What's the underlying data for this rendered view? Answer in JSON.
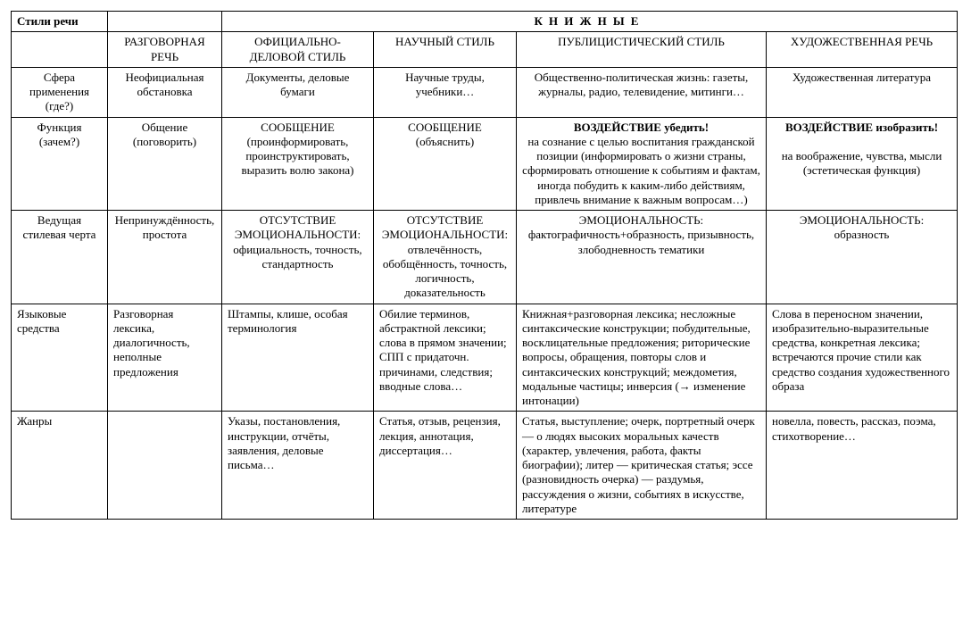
{
  "table": {
    "header": {
      "corner": "Стили речи",
      "group_title": "КНИЖНЫЕ",
      "cols": {
        "colloquial": "РАЗГОВОРНАЯ РЕЧЬ",
        "official": "ОФИЦИАЛЬНО-ДЕЛОВОЙ СТИЛЬ",
        "scientific": "НАУЧНЫЙ СТИЛЬ",
        "publicist": "ПУБЛИЦИСТИЧЕСКИЙ СТИЛЬ",
        "artistic": "ХУДОЖЕСТВЕННАЯ РЕЧЬ"
      }
    },
    "rows": {
      "sphere": {
        "label": "Сфера применения (где?)",
        "colloquial": "Неофициальная обстановка",
        "official": "Документы, деловые бумаги",
        "scientific": "Научные труды, учебники…",
        "publicist": "Общественно-политическая жизнь: газеты, журналы, радио, телевидение, митинги…",
        "artistic": "Художественная литература"
      },
      "func": {
        "label": "Функция (зачем?)",
        "colloquial": "Общение (поговорить)",
        "official": "СООБЩЕНИЕ (проинформировать, проинструктировать, выразить волю закона)",
        "scientific": "СООБЩЕНИЕ (объяснить)",
        "publicist_bold": "ВОЗДЕЙСТВИЕ убедить!",
        "publicist_rest": "на сознание с целью воспитания гражданской позиции (информировать о жизни страны, сформировать отношение к событиям и фактам, иногда побудить к каким-либо действиям, привлечь внимание к важным вопросам…)",
        "artistic_bold": "ВОЗДЕЙСТВИЕ изобразить!",
        "artistic_rest": "на воображение, чувства, мысли (эстетическая функция)"
      },
      "trait": {
        "label": "Ведущая стилевая черта",
        "colloquial": "Непринуждённость, простота",
        "official": "ОТСУТСТВИЕ ЭМОЦИОНАЛЬНОСТИ: официальность, точность, стандартность",
        "scientific": "ОТСУТСТВИЕ ЭМОЦИОНАЛЬНОСТИ: отвлечённость, обобщённость, точность, логичность, доказательность",
        "publicist": "ЭМОЦИОНАЛЬНОСТЬ: фактографичность+образность, призывность, злободневность тематики",
        "artistic": "ЭМОЦИОНАЛЬНОСТЬ: образность"
      },
      "means": {
        "label": "Языковые средства",
        "colloquial": "Разговорная лексика, диалогичность, неполные предложения",
        "official": "Штампы, клише, особая терминология",
        "scientific": "Обилие терминов, абстрактной лексики; слова в прямом значении; СПП с придаточн. причинами, следствия; вводные слова…",
        "publicist": "Книжная+разговорная лексика; несложные синтаксические конструкции; побудительные, восклицательные предложения; риторические вопросы, обращения, повторы слов и синтаксических конструкций; междометия, модальные частицы; инверсия (→ изменение интонации)",
        "artistic": "Слова в переносном значении, изобразительно-выразительные средства, конкретная лексика; встречаются прочие стили как средство создания художественного образа"
      },
      "genres": {
        "label": "Жанры",
        "colloquial": "",
        "official": "Указы, постановления, инструкции, отчёты, заявления, деловые письма…",
        "scientific": "Статья, отзыв, рецензия, лекция, аннотация, диссертация…",
        "publicist": "Статья, выступление; очерк, портретный очерк — о людях высоких моральных качеств (характер, увлечения, работа, факты биографии); литер — критическая статья; эссе (разновидность очерка) — раздумья, рассуждения о жизни, событиях в искусстве, литературе",
        "artistic": "новелла, повесть, рассказ, поэма, стихотворение…"
      }
    }
  },
  "style": {
    "font_family": "Times New Roman",
    "font_size_pt": 10,
    "border_color": "#000000",
    "background_color": "#ffffff",
    "text_color": "#000000"
  }
}
